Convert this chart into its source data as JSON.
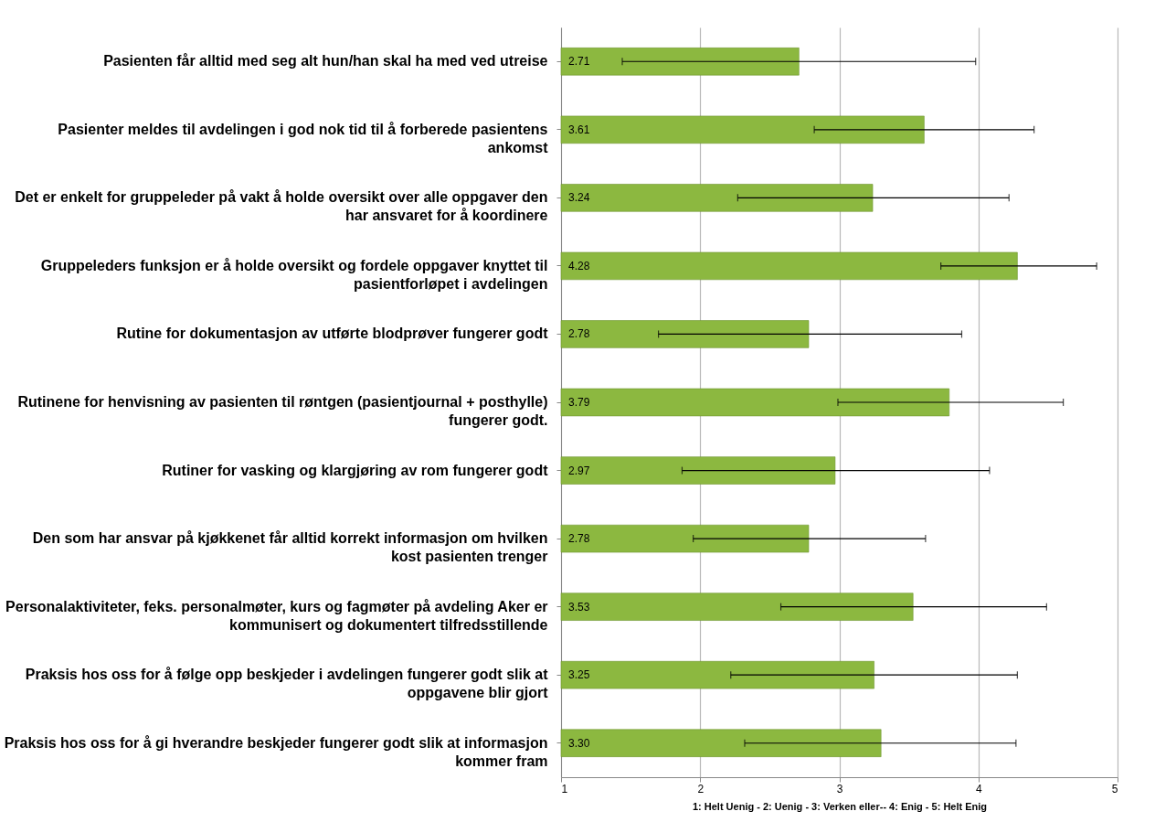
{
  "chart_data": {
    "type": "bar",
    "orientation": "horizontal",
    "xlabel": "1: Helt Uenig  - 2: Uenig - 3: Verken eller-- 4: Enig - 5: Helt Enig",
    "categories": [
      "Pasienten får alltid med seg alt hun/han skal ha med ved utreise",
      "Pasienter meldes til avdelingen i god nok tid til å forberede pasientens ankomst",
      "Det er enkelt for gruppeleder på vakt å holde oversikt over alle oppgaver den har ansvaret for å koordinere",
      "Gruppeleders funksjon er å  holde oversikt og fordele oppgaver knyttet til pasientforløpet i avdelingen",
      "Rutine for dokumentasjon av utførte blodprøver fungerer godt",
      "Rutinene for henvisning av pasienten til røntgen (pasientjournal + posthylle) fungerer godt.",
      "Rutiner for vasking og klargjøring av rom fungerer godt",
      "Den som har ansvar på kjøkkenet får alltid korrekt informasjon om hvilken kost pasienten trenger",
      "Personalaktiviteter, feks. personalmøter, kurs og fagmøter på avdeling Aker er kommunisert og dokumentert tilfredsstillende",
      "Praksis hos oss for å følge opp beskjeder i avdelingen fungerer godt slik at oppgavene blir gjort",
      "Praksis hos oss for å gi hverandre beskjeder fungerer godt slik at informasjon kommer fram"
    ],
    "values": [
      2.71,
      3.61,
      3.24,
      4.28,
      2.78,
      3.79,
      2.97,
      2.78,
      3.53,
      3.25,
      3.3
    ],
    "value_labels": [
      "2.71",
      "3.61",
      "3.24",
      "4.28",
      "2.78",
      "3.79",
      "2.97",
      "2.78",
      "3.53",
      "3.25",
      "3.30"
    ],
    "errors": [
      [
        1.44,
        3.98
      ],
      [
        2.82,
        4.4
      ],
      [
        2.27,
        4.22
      ],
      [
        3.73,
        4.85
      ],
      [
        1.7,
        3.88
      ],
      [
        2.99,
        4.61
      ],
      [
        1.87,
        4.08
      ],
      [
        1.95,
        3.62
      ],
      [
        2.58,
        4.49
      ],
      [
        2.22,
        4.28
      ],
      [
        2.32,
        4.27
      ]
    ],
    "color": "#8cb840",
    "xlim": [
      1,
      5
    ],
    "xticks": [
      1,
      2,
      3,
      4,
      5
    ],
    "grid": "x"
  }
}
